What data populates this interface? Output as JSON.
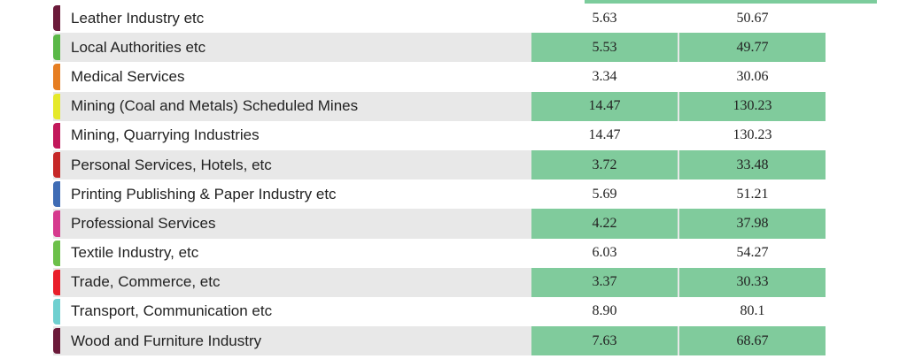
{
  "rows": [
    {
      "name": "Leather Industry etc",
      "v1": "5.63",
      "v2": "50.67",
      "accent": "#6b1a3a",
      "shade": false
    },
    {
      "name": "Local Authorities etc",
      "v1": "5.53",
      "v2": "49.77",
      "accent": "#5ab847",
      "shade": true
    },
    {
      "name": "Medical Services",
      "v1": "3.34",
      "v2": "30.06",
      "accent": "#e67e22",
      "shade": false
    },
    {
      "name": "Mining (Coal and Metals) Scheduled Mines",
      "v1": "14.47",
      "v2": "130.23",
      "accent": "#e5e92a",
      "shade": true
    },
    {
      "name": "Mining, Quarrying Industries",
      "v1": "14.47",
      "v2": "130.23",
      "accent": "#c2185b",
      "shade": false
    },
    {
      "name": "Personal Services, Hotels, etc",
      "v1": "3.72",
      "v2": "33.48",
      "accent": "#c62828",
      "shade": true
    },
    {
      "name": "Printing Publishing & Paper Industry etc",
      "v1": "5.69",
      "v2": "51.21",
      "accent": "#3f6cb5",
      "shade": false
    },
    {
      "name": "Professional Services",
      "v1": "4.22",
      "v2": "37.98",
      "accent": "#d63a8e",
      "shade": true
    },
    {
      "name": "Textile Industry, etc",
      "v1": "6.03",
      "v2": "54.27",
      "accent": "#6cc04a",
      "shade": false
    },
    {
      "name": "Trade, Commerce, etc",
      "v1": "3.37",
      "v2": "30.33",
      "accent": "#e91e2a",
      "shade": true
    },
    {
      "name": "Transport, Communication etc",
      "v1": "8.90",
      "v2": "80.1",
      "accent": "#6fd0d0",
      "shade": false
    },
    {
      "name": "Wood and Furniture Industry",
      "v1": "7.63",
      "v2": "68.67",
      "accent": "#6b1a3a",
      "shade": true
    }
  ]
}
